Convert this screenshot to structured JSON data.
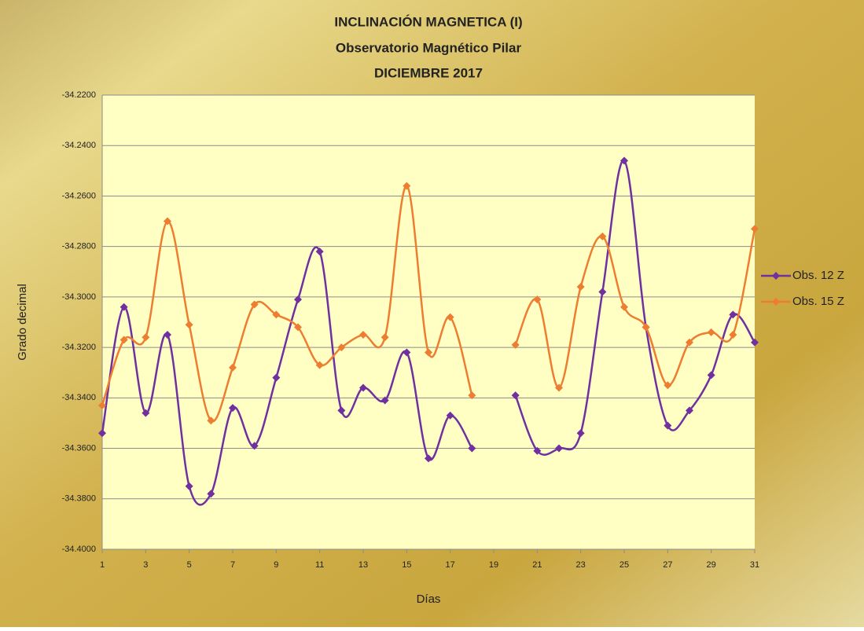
{
  "chart_data": {
    "type": "line",
    "title": [
      "INCLINACIÓN MAGNETICA (I)",
      "Observatorio Magnético Pilar",
      "DICIEMBRE 2017"
    ],
    "x_label": "Días",
    "y_label": "Grado decimal",
    "x": [
      1,
      2,
      3,
      4,
      5,
      6,
      7,
      8,
      9,
      10,
      11,
      12,
      13,
      14,
      15,
      16,
      17,
      18,
      19,
      20,
      21,
      22,
      23,
      24,
      25,
      26,
      27,
      28,
      29,
      30,
      31
    ],
    "series": [
      {
        "name": "Obs. 12 Z",
        "color": "#7030a0",
        "values": [
          -34.354,
          -34.304,
          -34.346,
          -34.315,
          -34.375,
          -34.378,
          -34.344,
          -34.359,
          -34.332,
          -34.301,
          -34.282,
          -34.345,
          -34.336,
          -34.341,
          -34.322,
          -34.364,
          -34.347,
          -34.36,
          null,
          -34.339,
          -34.361,
          -34.36,
          -34.354,
          -34.298,
          -34.246,
          -34.312,
          -34.351,
          -34.345,
          -34.331,
          -34.307,
          -34.318
        ]
      },
      {
        "name": "Obs. 15 Z",
        "color": "#ed7d31",
        "values": [
          -34.343,
          -34.317,
          -34.316,
          -34.27,
          -34.311,
          -34.349,
          -34.328,
          -34.303,
          -34.307,
          -34.312,
          -34.327,
          -34.32,
          -34.315,
          -34.316,
          -34.256,
          -34.322,
          -34.308,
          -34.339,
          null,
          -34.319,
          -34.301,
          -34.336,
          -34.296,
          -34.276,
          -34.304,
          -34.312,
          -34.335,
          -34.318,
          -34.314,
          -34.315,
          -34.273
        ]
      }
    ],
    "xlim": [
      1,
      31
    ],
    "xticks": [
      1,
      3,
      5,
      7,
      9,
      11,
      13,
      15,
      17,
      19,
      21,
      23,
      25,
      27,
      29,
      31
    ],
    "ylim": [
      -34.4,
      -34.22
    ],
    "yticks": [
      {
        "value": -34.4,
        "label": "-34.4000"
      },
      {
        "value": -34.38,
        "label": "-34.3800"
      },
      {
        "value": -34.36,
        "label": "-34.3600"
      },
      {
        "value": -34.34,
        "label": "-34.3400"
      },
      {
        "value": -34.32,
        "label": "-34.3200"
      },
      {
        "value": -34.3,
        "label": "-34.3000"
      },
      {
        "value": -34.28,
        "label": "-34.2800"
      },
      {
        "value": -34.26,
        "label": "-34.2600"
      },
      {
        "value": -34.24,
        "label": "-34.2400"
      },
      {
        "value": -34.22,
        "label": "-34.2200"
      }
    ],
    "grid": true,
    "legend": "right",
    "plot_background": "#ffffc4"
  }
}
